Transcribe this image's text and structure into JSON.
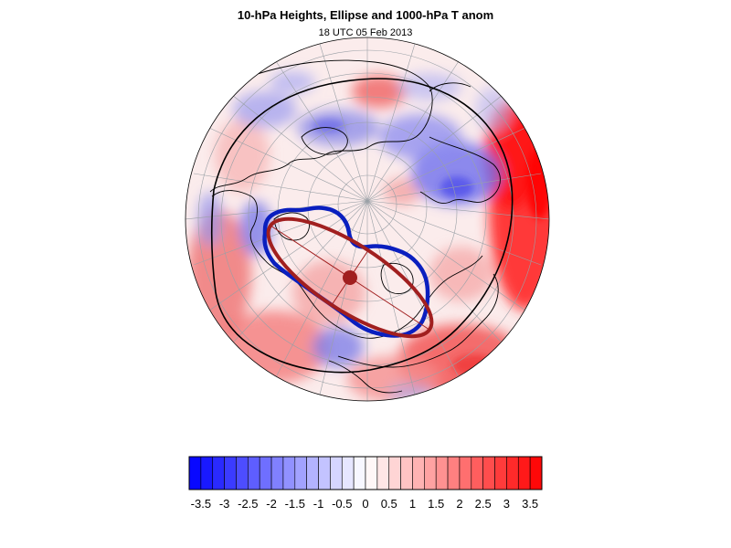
{
  "title": "10-hPa Heights, Ellipse and 1000-hPa T anom",
  "subtitle": "18 UTC 05 Feb 2013",
  "colors": {
    "vortex_contour": "#0a1fbf",
    "ellipse": "#a11f1f",
    "coastline": "#000000",
    "gridline": "#9aa0a6",
    "negative_max": "#0000ff",
    "positive_max": "#ff0000"
  },
  "colorbar": {
    "min": -3.75,
    "max": 3.75,
    "step": 0.25,
    "labels": [
      "-3.5",
      "-3",
      "-2.5",
      "-2",
      "-1.5",
      "-1",
      "-0.5",
      "0",
      "0.5",
      "1",
      "1.5",
      "2",
      "2.5",
      "3",
      "3.5"
    ]
  },
  "map": {
    "projection": "north-polar-orthographic",
    "field": "1000-hPa temperature anomaly",
    "overlays": [
      "10-hPa height contour",
      "fitted ellipse",
      "ellipse centroid"
    ]
  }
}
